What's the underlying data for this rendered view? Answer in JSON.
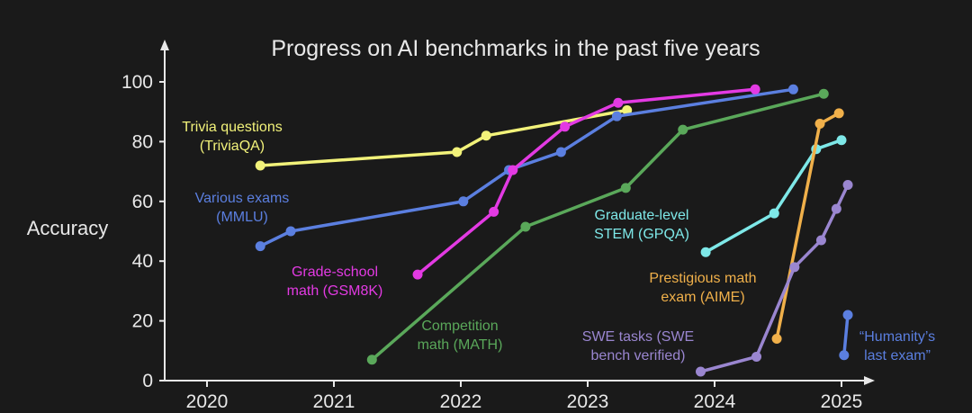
{
  "chart_data": {
    "type": "line",
    "title": "Progress on AI benchmarks in the past five years",
    "xlabel": "",
    "ylabel": "Accuracy",
    "xlim": [
      2020,
      2025
    ],
    "ylim": [
      0,
      100
    ],
    "xticks": [
      "2020",
      "2021",
      "2022",
      "2023",
      "2024",
      "2025"
    ],
    "yticks": [
      "0",
      "20",
      "40",
      "60",
      "80",
      "100"
    ],
    "grid": false,
    "background": "#1a1a1a",
    "series": [
      {
        "name": "Trivia questions (TriviaQA)",
        "label_lines": [
          "Trivia questions",
          "(TriviaQA)"
        ],
        "color": "#f2f27a",
        "x": [
          2020.42,
          2021.97,
          2022.2,
          2023.31
        ],
        "y": [
          72,
          76.5,
          82,
          90.5
        ]
      },
      {
        "name": "Various exams (MMLU)",
        "label_lines": [
          "Various exams",
          "(MMLU)"
        ],
        "color": "#5b7fe0",
        "x": [
          2020.42,
          2020.66,
          2022.02,
          2022.38,
          2022.79,
          2023.23,
          2024.62
        ],
        "y": [
          45,
          50,
          60,
          70.5,
          76.5,
          88.5,
          97.5
        ]
      },
      {
        "name": "Grade-school math (GSM8K)",
        "label_lines": [
          "Grade-school",
          "math (GSM8K)"
        ],
        "color": "#e33ae3",
        "x": [
          2021.66,
          2022.26,
          2022.41,
          2022.82,
          2023.24,
          2024.32
        ],
        "y": [
          35.5,
          56.5,
          70.5,
          85,
          93,
          97.5
        ]
      },
      {
        "name": "Competition math (MATH)",
        "label_lines": [
          "Competition",
          "math (MATH)"
        ],
        "color": "#5aa85a",
        "x": [
          2021.3,
          2022.51,
          2023.3,
          2023.75,
          2024.86
        ],
        "y": [
          7,
          51.5,
          64.5,
          84,
          96
        ]
      },
      {
        "name": "Graduate-level STEM (GPQA)",
        "label_lines": [
          "Graduate-level",
          "STEM (GPQA)"
        ],
        "color": "#7ee8e8",
        "x": [
          2023.93,
          2024.47,
          2024.8,
          2025.0
        ],
        "y": [
          43,
          56,
          77.5,
          80.5
        ]
      },
      {
        "name": "Prestigious math exam (AIME)",
        "label_lines": [
          "Prestigious math",
          "exam (AIME)"
        ],
        "color": "#f0b04a",
        "x": [
          2024.49,
          2024.83,
          2024.98
        ],
        "y": [
          14,
          86,
          89.5
        ]
      },
      {
        "name": "SWE tasks (SWE bench verified)",
        "label_lines": [
          "SWE tasks (SWE",
          "bench verified)"
        ],
        "color": "#9a86d0",
        "x": [
          2023.89,
          2024.33,
          2024.63,
          2024.84,
          2024.96,
          2025.05
        ],
        "y": [
          3,
          8,
          38,
          47,
          57.5,
          65.5
        ]
      },
      {
        "name": "“Humanity’s last exam”",
        "label_lines": [
          "“Humanity’s",
          "last exam”"
        ],
        "color": "#5b7fe0",
        "x": [
          2025.02,
          2025.05
        ],
        "y": [
          8.5,
          22
        ]
      }
    ]
  }
}
